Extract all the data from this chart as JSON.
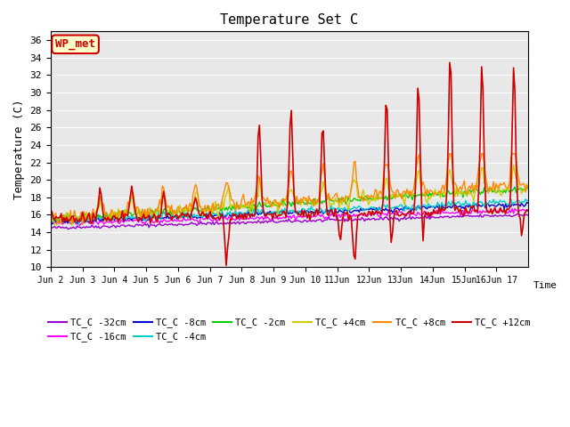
{
  "title": "Temperature Set C",
  "xlabel": "Time",
  "ylabel": "Temperature (C)",
  "ylim": [
    10,
    37
  ],
  "yticks": [
    10,
    12,
    14,
    16,
    18,
    20,
    22,
    24,
    26,
    28,
    30,
    32,
    34,
    36
  ],
  "bg_color": "#e8e8e8",
  "annotation_text": "WP_met",
  "annotation_bg": "#ffffcc",
  "annotation_border": "#cc0000",
  "annotation_text_color": "#cc0000",
  "series_colors": {
    "TC_C -32cm": "#9900cc",
    "TC_C -16cm": "#ff00ff",
    "TC_C -8cm": "#0000cc",
    "TC_C -4cm": "#00cccc",
    "TC_C -2cm": "#00cc00",
    "TC_C +4cm": "#cccc00",
    "TC_C +8cm": "#ff8800",
    "TC_C +12cm": "#cc0000"
  },
  "x_tick_labels": [
    "Jun 2",
    "Jun 3",
    "Jun 4",
    "Jun 5",
    "Jun 6",
    "Jun 7",
    "Jun 8",
    "Jun 9",
    "Jun 10",
    "11Jun",
    "12Jun",
    "13Jun",
    "14Jun",
    "15Jun",
    "16Jun 17"
  ],
  "num_points": 360
}
